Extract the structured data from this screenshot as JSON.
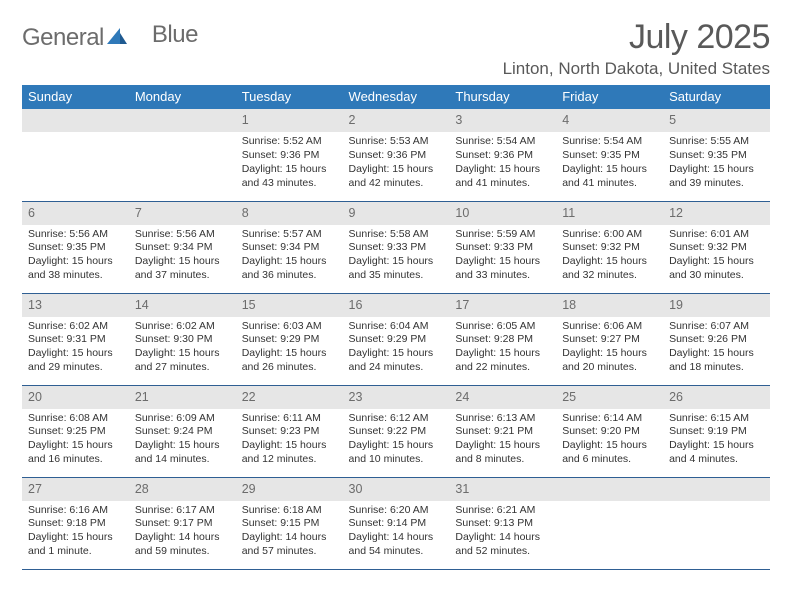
{
  "brand": {
    "word1": "General",
    "word2": "Blue",
    "logo_color": "#2f79b9",
    "word1_color": "#6c6c6c"
  },
  "header": {
    "month_title": "July 2025",
    "location": "Linton, North Dakota, United States"
  },
  "colors": {
    "header_bg": "#2f79b9",
    "header_fg": "#ffffff",
    "daynum_bg": "#e6e6e6",
    "daynum_fg": "#6c6c6c",
    "rule": "#2f5f93",
    "body_text": "#333333"
  },
  "day_names": [
    "Sunday",
    "Monday",
    "Tuesday",
    "Wednesday",
    "Thursday",
    "Friday",
    "Saturday"
  ],
  "weeks": [
    [
      {
        "n": "",
        "sr": "",
        "ss": "",
        "dl": ""
      },
      {
        "n": "",
        "sr": "",
        "ss": "",
        "dl": ""
      },
      {
        "n": "1",
        "sr": "Sunrise: 5:52 AM",
        "ss": "Sunset: 9:36 PM",
        "dl": "Daylight: 15 hours and 43 minutes."
      },
      {
        "n": "2",
        "sr": "Sunrise: 5:53 AM",
        "ss": "Sunset: 9:36 PM",
        "dl": "Daylight: 15 hours and 42 minutes."
      },
      {
        "n": "3",
        "sr": "Sunrise: 5:54 AM",
        "ss": "Sunset: 9:36 PM",
        "dl": "Daylight: 15 hours and 41 minutes."
      },
      {
        "n": "4",
        "sr": "Sunrise: 5:54 AM",
        "ss": "Sunset: 9:35 PM",
        "dl": "Daylight: 15 hours and 41 minutes."
      },
      {
        "n": "5",
        "sr": "Sunrise: 5:55 AM",
        "ss": "Sunset: 9:35 PM",
        "dl": "Daylight: 15 hours and 39 minutes."
      }
    ],
    [
      {
        "n": "6",
        "sr": "Sunrise: 5:56 AM",
        "ss": "Sunset: 9:35 PM",
        "dl": "Daylight: 15 hours and 38 minutes."
      },
      {
        "n": "7",
        "sr": "Sunrise: 5:56 AM",
        "ss": "Sunset: 9:34 PM",
        "dl": "Daylight: 15 hours and 37 minutes."
      },
      {
        "n": "8",
        "sr": "Sunrise: 5:57 AM",
        "ss": "Sunset: 9:34 PM",
        "dl": "Daylight: 15 hours and 36 minutes."
      },
      {
        "n": "9",
        "sr": "Sunrise: 5:58 AM",
        "ss": "Sunset: 9:33 PM",
        "dl": "Daylight: 15 hours and 35 minutes."
      },
      {
        "n": "10",
        "sr": "Sunrise: 5:59 AM",
        "ss": "Sunset: 9:33 PM",
        "dl": "Daylight: 15 hours and 33 minutes."
      },
      {
        "n": "11",
        "sr": "Sunrise: 6:00 AM",
        "ss": "Sunset: 9:32 PM",
        "dl": "Daylight: 15 hours and 32 minutes."
      },
      {
        "n": "12",
        "sr": "Sunrise: 6:01 AM",
        "ss": "Sunset: 9:32 PM",
        "dl": "Daylight: 15 hours and 30 minutes."
      }
    ],
    [
      {
        "n": "13",
        "sr": "Sunrise: 6:02 AM",
        "ss": "Sunset: 9:31 PM",
        "dl": "Daylight: 15 hours and 29 minutes."
      },
      {
        "n": "14",
        "sr": "Sunrise: 6:02 AM",
        "ss": "Sunset: 9:30 PM",
        "dl": "Daylight: 15 hours and 27 minutes."
      },
      {
        "n": "15",
        "sr": "Sunrise: 6:03 AM",
        "ss": "Sunset: 9:29 PM",
        "dl": "Daylight: 15 hours and 26 minutes."
      },
      {
        "n": "16",
        "sr": "Sunrise: 6:04 AM",
        "ss": "Sunset: 9:29 PM",
        "dl": "Daylight: 15 hours and 24 minutes."
      },
      {
        "n": "17",
        "sr": "Sunrise: 6:05 AM",
        "ss": "Sunset: 9:28 PM",
        "dl": "Daylight: 15 hours and 22 minutes."
      },
      {
        "n": "18",
        "sr": "Sunrise: 6:06 AM",
        "ss": "Sunset: 9:27 PM",
        "dl": "Daylight: 15 hours and 20 minutes."
      },
      {
        "n": "19",
        "sr": "Sunrise: 6:07 AM",
        "ss": "Sunset: 9:26 PM",
        "dl": "Daylight: 15 hours and 18 minutes."
      }
    ],
    [
      {
        "n": "20",
        "sr": "Sunrise: 6:08 AM",
        "ss": "Sunset: 9:25 PM",
        "dl": "Daylight: 15 hours and 16 minutes."
      },
      {
        "n": "21",
        "sr": "Sunrise: 6:09 AM",
        "ss": "Sunset: 9:24 PM",
        "dl": "Daylight: 15 hours and 14 minutes."
      },
      {
        "n": "22",
        "sr": "Sunrise: 6:11 AM",
        "ss": "Sunset: 9:23 PM",
        "dl": "Daylight: 15 hours and 12 minutes."
      },
      {
        "n": "23",
        "sr": "Sunrise: 6:12 AM",
        "ss": "Sunset: 9:22 PM",
        "dl": "Daylight: 15 hours and 10 minutes."
      },
      {
        "n": "24",
        "sr": "Sunrise: 6:13 AM",
        "ss": "Sunset: 9:21 PM",
        "dl": "Daylight: 15 hours and 8 minutes."
      },
      {
        "n": "25",
        "sr": "Sunrise: 6:14 AM",
        "ss": "Sunset: 9:20 PM",
        "dl": "Daylight: 15 hours and 6 minutes."
      },
      {
        "n": "26",
        "sr": "Sunrise: 6:15 AM",
        "ss": "Sunset: 9:19 PM",
        "dl": "Daylight: 15 hours and 4 minutes."
      }
    ],
    [
      {
        "n": "27",
        "sr": "Sunrise: 6:16 AM",
        "ss": "Sunset: 9:18 PM",
        "dl": "Daylight: 15 hours and 1 minute."
      },
      {
        "n": "28",
        "sr": "Sunrise: 6:17 AM",
        "ss": "Sunset: 9:17 PM",
        "dl": "Daylight: 14 hours and 59 minutes."
      },
      {
        "n": "29",
        "sr": "Sunrise: 6:18 AM",
        "ss": "Sunset: 9:15 PM",
        "dl": "Daylight: 14 hours and 57 minutes."
      },
      {
        "n": "30",
        "sr": "Sunrise: 6:20 AM",
        "ss": "Sunset: 9:14 PM",
        "dl": "Daylight: 14 hours and 54 minutes."
      },
      {
        "n": "31",
        "sr": "Sunrise: 6:21 AM",
        "ss": "Sunset: 9:13 PM",
        "dl": "Daylight: 14 hours and 52 minutes."
      },
      {
        "n": "",
        "sr": "",
        "ss": "",
        "dl": ""
      },
      {
        "n": "",
        "sr": "",
        "ss": "",
        "dl": ""
      }
    ]
  ]
}
